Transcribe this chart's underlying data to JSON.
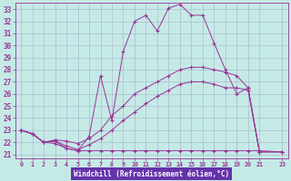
{
  "xlabel": "Windchill (Refroidissement éolien,°C)",
  "bg_color": "#c5eae6",
  "line_color": "#993399",
  "grid_color": "#aab0cc",
  "xlabel_bg": "#6633aa",
  "xlabel_fg": "#ffffff",
  "xlim_min": -0.5,
  "xlim_max": 23.5,
  "ylim_min": 20.7,
  "ylim_max": 33.5,
  "xticks": [
    0,
    1,
    2,
    3,
    4,
    5,
    6,
    7,
    8,
    9,
    10,
    11,
    12,
    13,
    14,
    15,
    16,
    17,
    18,
    19,
    20,
    21,
    23
  ],
  "yticks": [
    21,
    22,
    23,
    24,
    25,
    26,
    27,
    28,
    29,
    30,
    31,
    32,
    33
  ],
  "line1_x": [
    0,
    1,
    2,
    3,
    4,
    5,
    6,
    7,
    8,
    9,
    10,
    11,
    12,
    13,
    14,
    15,
    16,
    17,
    18,
    19,
    20,
    21
  ],
  "line1_y": [
    23.0,
    22.7,
    22.0,
    22.1,
    21.5,
    21.3,
    22.5,
    27.5,
    23.8,
    29.5,
    32.0,
    32.5,
    31.2,
    33.1,
    33.4,
    32.5,
    32.5,
    30.2,
    28.0,
    26.0,
    26.5,
    21.2
  ],
  "line2_x": [
    0,
    1,
    2,
    3,
    4,
    5,
    6,
    7,
    8,
    9,
    10,
    11,
    12,
    13,
    14,
    15,
    16,
    17,
    18,
    19,
    20,
    21,
    23
  ],
  "line2_y": [
    23.0,
    22.7,
    22.0,
    22.2,
    22.1,
    21.9,
    22.3,
    23.0,
    24.2,
    25.0,
    26.0,
    26.5,
    27.0,
    27.5,
    28.0,
    28.2,
    28.2,
    28.0,
    27.8,
    27.5,
    26.5,
    21.2,
    21.2
  ],
  "line3_x": [
    0,
    1,
    2,
    3,
    4,
    5,
    6,
    7,
    8,
    9,
    10,
    11,
    12,
    13,
    14,
    15,
    16,
    17,
    18,
    19,
    20,
    21,
    23
  ],
  "line3_y": [
    23.0,
    22.7,
    22.0,
    21.9,
    21.5,
    21.3,
    21.3,
    21.3,
    21.3,
    21.3,
    21.3,
    21.3,
    21.3,
    21.3,
    21.3,
    21.3,
    21.3,
    21.3,
    21.3,
    21.3,
    21.3,
    21.3,
    21.2
  ],
  "line4_x": [
    0,
    1,
    2,
    3,
    4,
    5,
    6,
    7,
    8,
    9,
    10,
    11,
    12,
    13,
    14,
    15,
    16,
    17,
    18,
    19,
    20,
    21,
    23
  ],
  "line4_y": [
    23.0,
    22.7,
    22.0,
    22.1,
    21.7,
    21.4,
    21.8,
    22.3,
    23.0,
    23.8,
    24.5,
    25.2,
    25.8,
    26.3,
    26.8,
    27.0,
    27.0,
    26.8,
    26.5,
    26.5,
    26.3,
    21.2,
    21.2
  ]
}
